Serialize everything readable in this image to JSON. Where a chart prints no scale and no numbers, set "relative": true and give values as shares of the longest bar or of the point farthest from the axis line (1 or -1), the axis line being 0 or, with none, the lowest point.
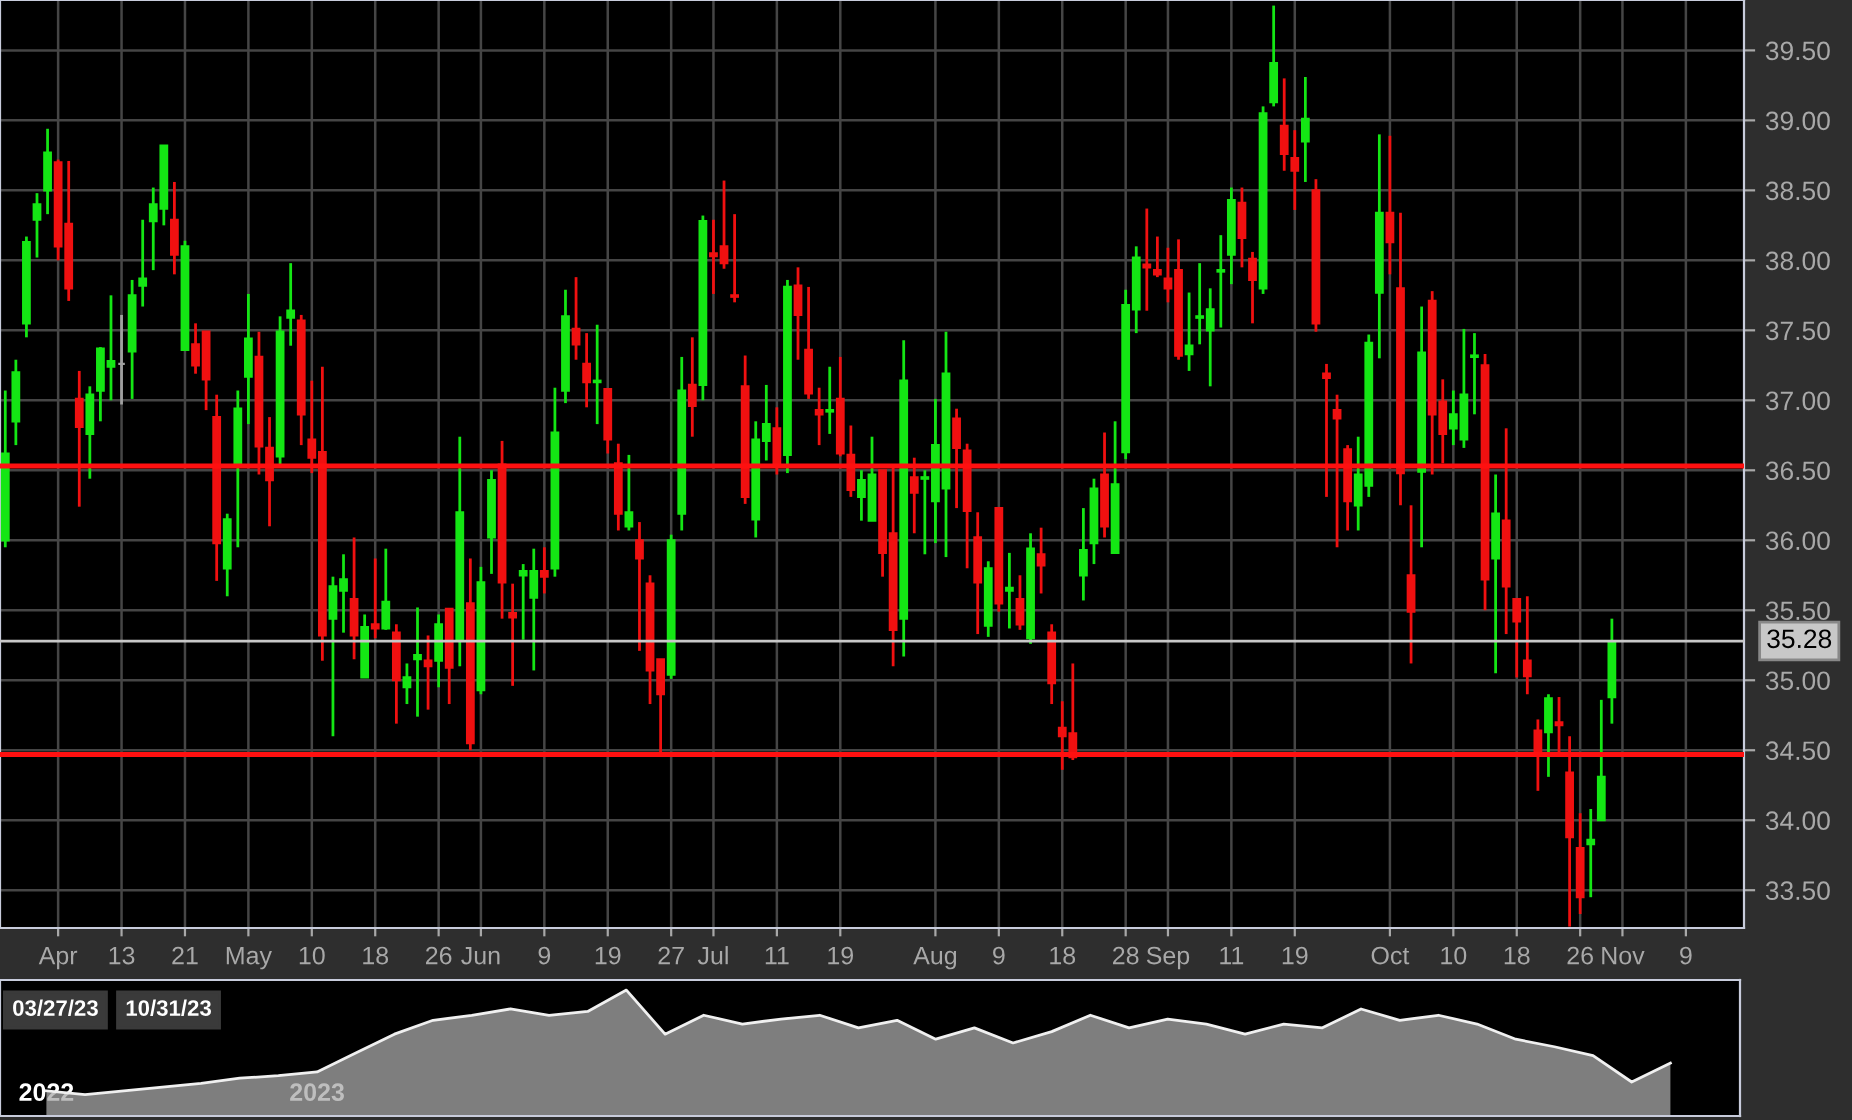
{
  "chart_data": [
    {
      "type": "candlestick",
      "categories": [
        null,
        null,
        null,
        null,
        null,
        "Apr",
        null,
        null,
        null,
        null,
        null,
        "13",
        null,
        null,
        null,
        null,
        null,
        "21",
        null,
        null,
        null,
        null,
        null,
        "May",
        null,
        null,
        null,
        null,
        null,
        "10",
        null,
        null,
        null,
        null,
        null,
        "18",
        null,
        null,
        null,
        null,
        null,
        "26",
        null,
        null,
        null,
        "Jun",
        null,
        null,
        null,
        null,
        null,
        "9",
        null,
        null,
        null,
        null,
        null,
        "19",
        null,
        null,
        null,
        null,
        null,
        "27",
        null,
        null,
        null,
        "Jul",
        null,
        null,
        null,
        null,
        null,
        "11",
        null,
        null,
        null,
        null,
        null,
        "19",
        null,
        null,
        null,
        null,
        null,
        null,
        null,
        null,
        "Aug",
        null,
        null,
        null,
        null,
        null,
        "9",
        null,
        null,
        null,
        null,
        null,
        "18",
        null,
        null,
        null,
        null,
        null,
        "28",
        null,
        null,
        null,
        "Sep",
        null,
        null,
        null,
        null,
        null,
        "11",
        null,
        null,
        null,
        null,
        null,
        "19",
        null,
        null,
        null,
        null,
        null,
        null,
        null,
        null,
        "Oct",
        null,
        null,
        null,
        null,
        null,
        "10",
        null,
        null,
        null,
        null,
        null,
        "18",
        null,
        null,
        null,
        null,
        null,
        "26",
        null,
        null,
        null,
        "Nov",
        null,
        null,
        null,
        null,
        null,
        "9",
        null,
        null,
        null,
        null,
        null
      ],
      "ohlc": [
        [
          36.0,
          37.07,
          35.95,
          36.62
        ],
        [
          36.85,
          37.29,
          36.68,
          37.2
        ],
        [
          37.55,
          38.17,
          37.45,
          38.13
        ],
        [
          38.29,
          38.48,
          38.02,
          38.4
        ],
        [
          38.5,
          38.94,
          38.33,
          38.77
        ],
        [
          38.7,
          38.72,
          38.0,
          38.1
        ],
        [
          38.26,
          38.71,
          37.71,
          37.8
        ],
        [
          37.01,
          37.21,
          36.24,
          36.81
        ],
        [
          36.76,
          37.1,
          36.44,
          37.04
        ],
        [
          37.07,
          37.38,
          36.85,
          37.37
        ],
        [
          37.24,
          37.75,
          37.0,
          37.28
        ],
        [
          37.26,
          37.61,
          36.97,
          37.26
        ],
        [
          37.35,
          37.86,
          37.01,
          37.75
        ],
        [
          37.82,
          38.29,
          37.67,
          37.87
        ],
        [
          38.28,
          38.52,
          37.93,
          38.4
        ],
        [
          38.37,
          38.82,
          38.25,
          38.82
        ],
        [
          38.29,
          38.56,
          37.9,
          38.04
        ],
        [
          37.36,
          38.14,
          37.36,
          38.1
        ],
        [
          37.4,
          37.55,
          37.19,
          37.25
        ],
        [
          37.49,
          37.49,
          36.93,
          37.15
        ],
        [
          36.88,
          37.04,
          35.71,
          35.98
        ],
        [
          35.8,
          36.19,
          35.6,
          36.15
        ],
        [
          36.53,
          37.07,
          35.95,
          36.94
        ],
        [
          37.17,
          37.76,
          36.83,
          37.44
        ],
        [
          37.31,
          37.49,
          36.47,
          36.67
        ],
        [
          36.66,
          36.88,
          36.1,
          36.43
        ],
        [
          36.6,
          37.6,
          36.52,
          37.49
        ],
        [
          37.59,
          37.98,
          37.39,
          37.64
        ],
        [
          37.57,
          37.61,
          36.68,
          36.9
        ],
        [
          36.72,
          37.14,
          36.48,
          36.59
        ],
        [
          36.63,
          37.24,
          35.14,
          35.32
        ],
        [
          35.44,
          35.74,
          34.6,
          35.67
        ],
        [
          35.64,
          35.9,
          35.34,
          35.72
        ],
        [
          35.58,
          36.02,
          35.15,
          35.32
        ],
        [
          35.02,
          35.47,
          35.02,
          35.38
        ],
        [
          35.4,
          35.87,
          35.3,
          35.37
        ],
        [
          35.37,
          35.94,
          35.36,
          35.56
        ],
        [
          35.34,
          35.4,
          34.69,
          35.0
        ],
        [
          34.95,
          35.12,
          34.83,
          35.02
        ],
        [
          35.15,
          35.52,
          34.74,
          35.18
        ],
        [
          35.14,
          35.32,
          34.79,
          35.1
        ],
        [
          35.14,
          35.47,
          34.95,
          35.4
        ],
        [
          35.51,
          35.51,
          34.83,
          35.09
        ],
        [
          35.29,
          36.74,
          35.1,
          36.2
        ],
        [
          35.55,
          35.87,
          34.5,
          34.55
        ],
        [
          34.93,
          35.81,
          34.9,
          35.7
        ],
        [
          36.02,
          36.5,
          35.76,
          36.43
        ],
        [
          36.54,
          36.71,
          35.44,
          35.7
        ],
        [
          35.48,
          35.69,
          34.96,
          35.45
        ],
        [
          35.75,
          35.83,
          35.29,
          35.78
        ],
        [
          35.59,
          35.94,
          35.07,
          35.78
        ],
        [
          35.78,
          35.95,
          35.62,
          35.74
        ],
        [
          35.8,
          37.09,
          35.74,
          36.77
        ],
        [
          37.07,
          37.79,
          36.98,
          37.6
        ],
        [
          37.51,
          37.88,
          37.29,
          37.4
        ],
        [
          37.26,
          37.48,
          36.95,
          37.13
        ],
        [
          37.13,
          37.54,
          36.83,
          37.14
        ],
        [
          37.08,
          37.08,
          36.62,
          36.72
        ],
        [
          36.55,
          36.69,
          36.07,
          36.19
        ],
        [
          36.1,
          36.61,
          36.07,
          36.2
        ],
        [
          36.0,
          36.13,
          35.21,
          35.87
        ],
        [
          35.69,
          35.75,
          34.83,
          35.07
        ],
        [
          35.15,
          35.15,
          34.48,
          34.9
        ],
        [
          35.04,
          36.04,
          35.01,
          36.0
        ],
        [
          36.19,
          37.31,
          36.07,
          37.07
        ],
        [
          37.11,
          37.45,
          36.74,
          36.96
        ],
        [
          37.11,
          38.32,
          37.0,
          38.28
        ],
        [
          38.05,
          38.29,
          37.76,
          38.03
        ],
        [
          38.1,
          38.57,
          37.94,
          37.98
        ],
        [
          37.75,
          38.33,
          37.7,
          37.74
        ],
        [
          37.1,
          37.32,
          36.26,
          36.31
        ],
        [
          36.15,
          36.85,
          36.02,
          36.72
        ],
        [
          36.71,
          37.11,
          36.57,
          36.83
        ],
        [
          36.8,
          36.95,
          36.47,
          36.53
        ],
        [
          36.61,
          37.86,
          36.48,
          37.81
        ],
        [
          37.82,
          37.95,
          37.29,
          37.61
        ],
        [
          37.36,
          37.81,
          37.01,
          37.05
        ],
        [
          36.93,
          37.09,
          36.68,
          36.9
        ],
        [
          36.92,
          37.24,
          36.76,
          36.93
        ],
        [
          37.01,
          37.31,
          36.6,
          36.62
        ],
        [
          36.61,
          36.82,
          36.31,
          36.36
        ],
        [
          36.31,
          36.5,
          36.14,
          36.43
        ],
        [
          36.14,
          36.74,
          36.14,
          36.47
        ],
        [
          36.5,
          36.5,
          35.74,
          35.91
        ],
        [
          36.05,
          36.52,
          35.1,
          35.36
        ],
        [
          35.44,
          37.43,
          35.17,
          37.14
        ],
        [
          36.45,
          36.59,
          36.05,
          36.34
        ],
        [
          36.44,
          36.5,
          35.9,
          36.45
        ],
        [
          36.28,
          37.01,
          35.98,
          36.68
        ],
        [
          36.37,
          37.49,
          35.88,
          37.19
        ],
        [
          36.87,
          36.94,
          36.23,
          36.66
        ],
        [
          36.64,
          36.69,
          35.8,
          36.21
        ],
        [
          36.02,
          36.2,
          35.33,
          35.7
        ],
        [
          35.39,
          35.85,
          35.31,
          35.8
        ],
        [
          36.23,
          36.23,
          35.49,
          35.55
        ],
        [
          35.64,
          35.91,
          35.37,
          35.66
        ],
        [
          35.58,
          35.75,
          35.36,
          35.4
        ],
        [
          35.3,
          36.05,
          35.26,
          35.94
        ],
        [
          35.9,
          36.09,
          35.62,
          35.82
        ],
        [
          35.34,
          35.4,
          34.83,
          34.98
        ],
        [
          34.66,
          34.85,
          34.36,
          34.6
        ],
        [
          34.62,
          35.12,
          34.43,
          34.45
        ],
        [
          35.75,
          36.23,
          35.57,
          35.93
        ],
        [
          35.98,
          36.44,
          35.83,
          36.37
        ],
        [
          36.47,
          36.77,
          36.02,
          36.1
        ],
        [
          35.91,
          36.85,
          35.91,
          36.4
        ],
        [
          36.63,
          37.79,
          36.58,
          37.68
        ],
        [
          37.65,
          38.1,
          37.48,
          38.02
        ],
        [
          37.97,
          38.37,
          37.64,
          37.95
        ],
        [
          37.93,
          38.17,
          37.88,
          37.9
        ],
        [
          37.87,
          38.09,
          37.7,
          37.8
        ],
        [
          37.93,
          38.15,
          37.29,
          37.32
        ],
        [
          37.33,
          37.77,
          37.21,
          37.39
        ],
        [
          37.59,
          37.98,
          37.4,
          37.6
        ],
        [
          37.5,
          37.8,
          37.1,
          37.65
        ],
        [
          37.92,
          38.18,
          37.52,
          37.93
        ],
        [
          38.04,
          38.52,
          37.83,
          38.43
        ],
        [
          38.41,
          38.52,
          37.95,
          38.16
        ],
        [
          38.01,
          38.06,
          37.55,
          37.86
        ],
        [
          37.8,
          39.1,
          37.76,
          39.05
        ],
        [
          39.13,
          39.82,
          39.1,
          39.41
        ],
        [
          38.96,
          39.3,
          38.64,
          38.76
        ],
        [
          38.73,
          38.93,
          38.36,
          38.64
        ],
        [
          38.85,
          39.31,
          38.56,
          39.01
        ],
        [
          38.5,
          38.58,
          37.49,
          37.55
        ],
        [
          37.19,
          37.26,
          36.31,
          37.16
        ],
        [
          36.93,
          37.04,
          35.95,
          36.87
        ],
        [
          36.65,
          36.68,
          36.07,
          36.28
        ],
        [
          36.25,
          36.74,
          36.07,
          36.47
        ],
        [
          36.39,
          37.47,
          36.31,
          37.41
        ],
        [
          37.77,
          38.9,
          37.3,
          38.34
        ],
        [
          38.34,
          38.89,
          37.9,
          38.13
        ],
        [
          37.8,
          38.34,
          36.25,
          36.48
        ],
        [
          35.75,
          36.25,
          35.12,
          35.49
        ],
        [
          36.49,
          37.67,
          35.95,
          37.34
        ],
        [
          37.71,
          37.78,
          36.47,
          36.9
        ],
        [
          36.99,
          37.15,
          36.55,
          36.76
        ],
        [
          36.8,
          37.07,
          36.68,
          36.9
        ],
        [
          36.72,
          37.51,
          36.66,
          37.04
        ],
        [
          37.31,
          37.48,
          36.9,
          37.32
        ],
        [
          37.25,
          37.33,
          35.5,
          35.72
        ],
        [
          35.87,
          36.47,
          35.05,
          36.19
        ],
        [
          36.14,
          36.8,
          35.33,
          35.67
        ],
        [
          35.58,
          35.58,
          35.02,
          35.42
        ],
        [
          35.14,
          35.6,
          34.9,
          35.03
        ],
        [
          34.64,
          34.72,
          34.21,
          34.48
        ],
        [
          34.63,
          34.9,
          34.31,
          34.87
        ],
        [
          34.7,
          34.88,
          34.48,
          34.68
        ],
        [
          34.34,
          34.6,
          33.24,
          33.88
        ],
        [
          33.8,
          34.05,
          33.33,
          33.45
        ],
        [
          33.83,
          34.08,
          33.45,
          33.86
        ],
        [
          34.0,
          34.86,
          34.0,
          34.31
        ],
        [
          34.88,
          35.44,
          34.69,
          35.28
        ],
        null,
        null,
        null,
        null,
        null,
        null,
        null,
        null,
        null,
        null,
        null,
        null
      ],
      "colors": [
        "#14e614",
        "#14e614",
        "#14e614",
        "#14e614",
        "#14e614",
        "#f01010",
        "#f01010",
        "#f01010",
        "#14e614",
        "#14e614",
        "#14e614",
        "#a0a0a0",
        "#14e614",
        "#14e614",
        "#14e614",
        "#14e614",
        "#f01010",
        "#14e614",
        "#f01010",
        "#f01010",
        "#f01010",
        "#14e614",
        "#14e614",
        "#14e614",
        "#f01010",
        "#f01010",
        "#14e614",
        "#14e614",
        "#f01010",
        "#f01010",
        "#f01010",
        "#14e614",
        "#14e614",
        "#f01010",
        "#14e614",
        "#f01010",
        "#14e614",
        "#f01010",
        "#14e614",
        "#14e614",
        "#f01010",
        "#14e614",
        "#f01010",
        "#14e614",
        "#f01010",
        "#14e614",
        "#14e614",
        "#f01010",
        "#f01010",
        "#14e614",
        "#14e614",
        "#f01010",
        "#14e614",
        "#14e614",
        "#f01010",
        "#f01010",
        "#14e614",
        "#f01010",
        "#f01010",
        "#14e614",
        "#f01010",
        "#f01010",
        "#f01010",
        "#14e614",
        "#14e614",
        "#f01010",
        "#14e614",
        "#f01010",
        "#f01010",
        "#f01010",
        "#f01010",
        "#14e614",
        "#14e614",
        "#f01010",
        "#14e614",
        "#f01010",
        "#f01010",
        "#f01010",
        "#14e614",
        "#f01010",
        "#f01010",
        "#14e614",
        "#14e614",
        "#f01010",
        "#f01010",
        "#14e614",
        "#f01010",
        "#14e614",
        "#14e614",
        "#14e614",
        "#f01010",
        "#f01010",
        "#f01010",
        "#14e614",
        "#f01010",
        "#14e614",
        "#f01010",
        "#14e614",
        "#f01010",
        "#f01010",
        "#f01010",
        "#f01010",
        "#14e614",
        "#14e614",
        "#f01010",
        "#14e614",
        "#14e614",
        "#14e614",
        "#f01010",
        "#f01010",
        "#f01010",
        "#f01010",
        "#14e614",
        "#14e614",
        "#14e614",
        "#14e614",
        "#14e614",
        "#f01010",
        "#f01010",
        "#14e614",
        "#14e614",
        "#f01010",
        "#f01010",
        "#14e614",
        "#f01010",
        "#f01010",
        "#f01010",
        "#f01010",
        "#14e614",
        "#14e614",
        "#14e614",
        "#f01010",
        "#f01010",
        "#f01010",
        "#14e614",
        "#f01010",
        "#f01010",
        "#14e614",
        "#14e614",
        "#14e614",
        "#f01010",
        "#14e614",
        "#f01010",
        "#f01010",
        "#f01010",
        "#f01010",
        "#14e614",
        "#f01010",
        "#f01010",
        "#f01010",
        "#14e614",
        "#14e614",
        "#14e614",
        null,
        null,
        null,
        null,
        null,
        null,
        null,
        null,
        null,
        null,
        null,
        null
      ],
      "ylim": [
        33.23,
        39.86
      ],
      "yticks": [
        {
          "value": 33.5,
          "label": "33.50"
        },
        {
          "value": 34.0,
          "label": "34.00"
        },
        {
          "value": 34.5,
          "label": "34.50"
        },
        {
          "value": 35.0,
          "label": "35.00"
        },
        {
          "value": 35.5,
          "label": "35.50"
        },
        {
          "value": 36.0,
          "label": "36.00"
        },
        {
          "value": 36.5,
          "label": "36.50"
        },
        {
          "value": 37.0,
          "label": "37.00"
        },
        {
          "value": 37.5,
          "label": "37.50"
        },
        {
          "value": 38.0,
          "label": "38.00"
        },
        {
          "value": 38.5,
          "label": "38.50"
        },
        {
          "value": 39.0,
          "label": "39.00"
        },
        {
          "value": 39.5,
          "label": "39.50"
        }
      ],
      "grid": true,
      "ref_lines": [
        {
          "axis": "y",
          "value": 36.53,
          "color": "#ff1010"
        },
        {
          "axis": "y",
          "value": 34.47,
          "color": "#ff1010"
        },
        {
          "axis": "y",
          "value": 35.28,
          "label": "35.28",
          "color": "#c8c8c8"
        }
      ]
    },
    {
      "type": "area",
      "relative": true,
      "tick_labels": "x",
      "color": "#a8a8a8",
      "categories": [
        "2022",
        null,
        null,
        null,
        null,
        null,
        null,
        "2023",
        null,
        null,
        null,
        null,
        null,
        null,
        null,
        null,
        null,
        null,
        null,
        null,
        null,
        null,
        null,
        null,
        null,
        null,
        null,
        null,
        null,
        null,
        null,
        null,
        null,
        null,
        null,
        null,
        null,
        null,
        null,
        null,
        null,
        null,
        null
      ],
      "values": [
        0.2,
        0.17,
        0.2,
        0.23,
        0.26,
        0.3,
        0.32,
        0.35,
        0.5,
        0.65,
        0.76,
        0.8,
        0.85,
        0.8,
        0.83,
        1,
        0.65,
        0.8,
        0.73,
        0.77,
        0.8,
        0.7,
        0.76,
        0.61,
        0.7,
        0.58,
        0.67,
        0.8,
        0.7,
        0.77,
        0.73,
        0.65,
        0.73,
        0.7,
        0.85,
        0.76,
        0.8,
        0.73,
        0.61,
        0.55,
        0.48,
        0.27,
        0.42
      ],
      "annotations": [
        "03/27/23",
        "10/31/23"
      ]
    }
  ]
}
